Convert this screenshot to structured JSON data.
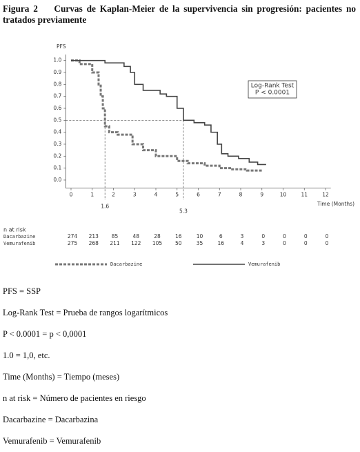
{
  "document": {
    "figure_label": "Figura 2",
    "title": "Curvas de Kaplan-Meier de la supervivencia sin progresión: pacientes no tratados previamente",
    "notes": [
      "PFS = SSP",
      "Log-Rank Test = Prueba de rangos logarítmicos",
      "P < 0.0001 = p < 0,0001",
      "1.0 = 1,0, etc.",
      "Time (Months) = Tiempo (meses)",
      "n at risk = Número de pacientes en riesgo",
      "Dacarbazine = Dacarbazina",
      "Vemurafenib = Vemurafenib"
    ]
  },
  "chart_data": {
    "type": "step",
    "y_label": "PFS",
    "x_label": "Time (Months)",
    "annotations": [
      "Log-Rank Test",
      "P < 0.0001"
    ],
    "xlim": [
      -0.25,
      12.25
    ],
    "ylim": [
      -0.05,
      1.05
    ],
    "xticks": [
      0,
      1,
      2,
      3,
      4,
      5,
      6,
      7,
      8,
      9,
      10,
      11,
      12
    ],
    "yticks": [
      {
        "value": 0,
        "label": "0.0"
      },
      0.1,
      0.2,
      0.3,
      0.4,
      0.5,
      0.6,
      0.7,
      0.8,
      0.9,
      {
        "value": 1,
        "label": "1.0"
      }
    ],
    "median_y": 0.5,
    "medians": [
      1.6,
      5.3
    ],
    "series": [
      {
        "name": "Dacarbazine",
        "color": "#777777",
        "dashed": true,
        "x": [
          0,
          0.4,
          1.0,
          1.3,
          1.4,
          1.5,
          1.6,
          1.8,
          2.2,
          2.9,
          3.4,
          4.0,
          5.0,
          5.5,
          6.3,
          7.0,
          7.6,
          8.3,
          9.0
        ],
        "values": [
          1.0,
          0.97,
          0.9,
          0.8,
          0.7,
          0.6,
          0.45,
          0.4,
          0.38,
          0.3,
          0.25,
          0.2,
          0.16,
          0.14,
          0.12,
          0.1,
          0.09,
          0.08,
          0.08
        ]
      },
      {
        "name": "Vemurafenib",
        "color": "#444444",
        "dashed": false,
        "x": [
          0,
          1.2,
          1.6,
          2.5,
          2.8,
          3.0,
          3.4,
          4.2,
          4.5,
          5.0,
          5.3,
          5.8,
          6.3,
          6.6,
          6.9,
          7.1,
          7.4,
          7.9,
          8.4,
          8.8,
          9.2
        ],
        "values": [
          1.0,
          1.0,
          0.98,
          0.95,
          0.9,
          0.8,
          0.75,
          0.72,
          0.7,
          0.6,
          0.5,
          0.48,
          0.46,
          0.4,
          0.3,
          0.22,
          0.2,
          0.18,
          0.15,
          0.13,
          0.13
        ]
      }
    ],
    "risk_table": {
      "title": "n at risk",
      "rows": [
        {
          "label": "Dacarbazine",
          "values": [
            274,
            213,
            85,
            48,
            28,
            16,
            10,
            6,
            3,
            0,
            0,
            0,
            0
          ]
        },
        {
          "label": "Vemurafenib",
          "values": [
            275,
            268,
            211,
            122,
            105,
            50,
            35,
            16,
            4,
            3,
            0,
            0,
            0
          ]
        }
      ]
    }
  }
}
